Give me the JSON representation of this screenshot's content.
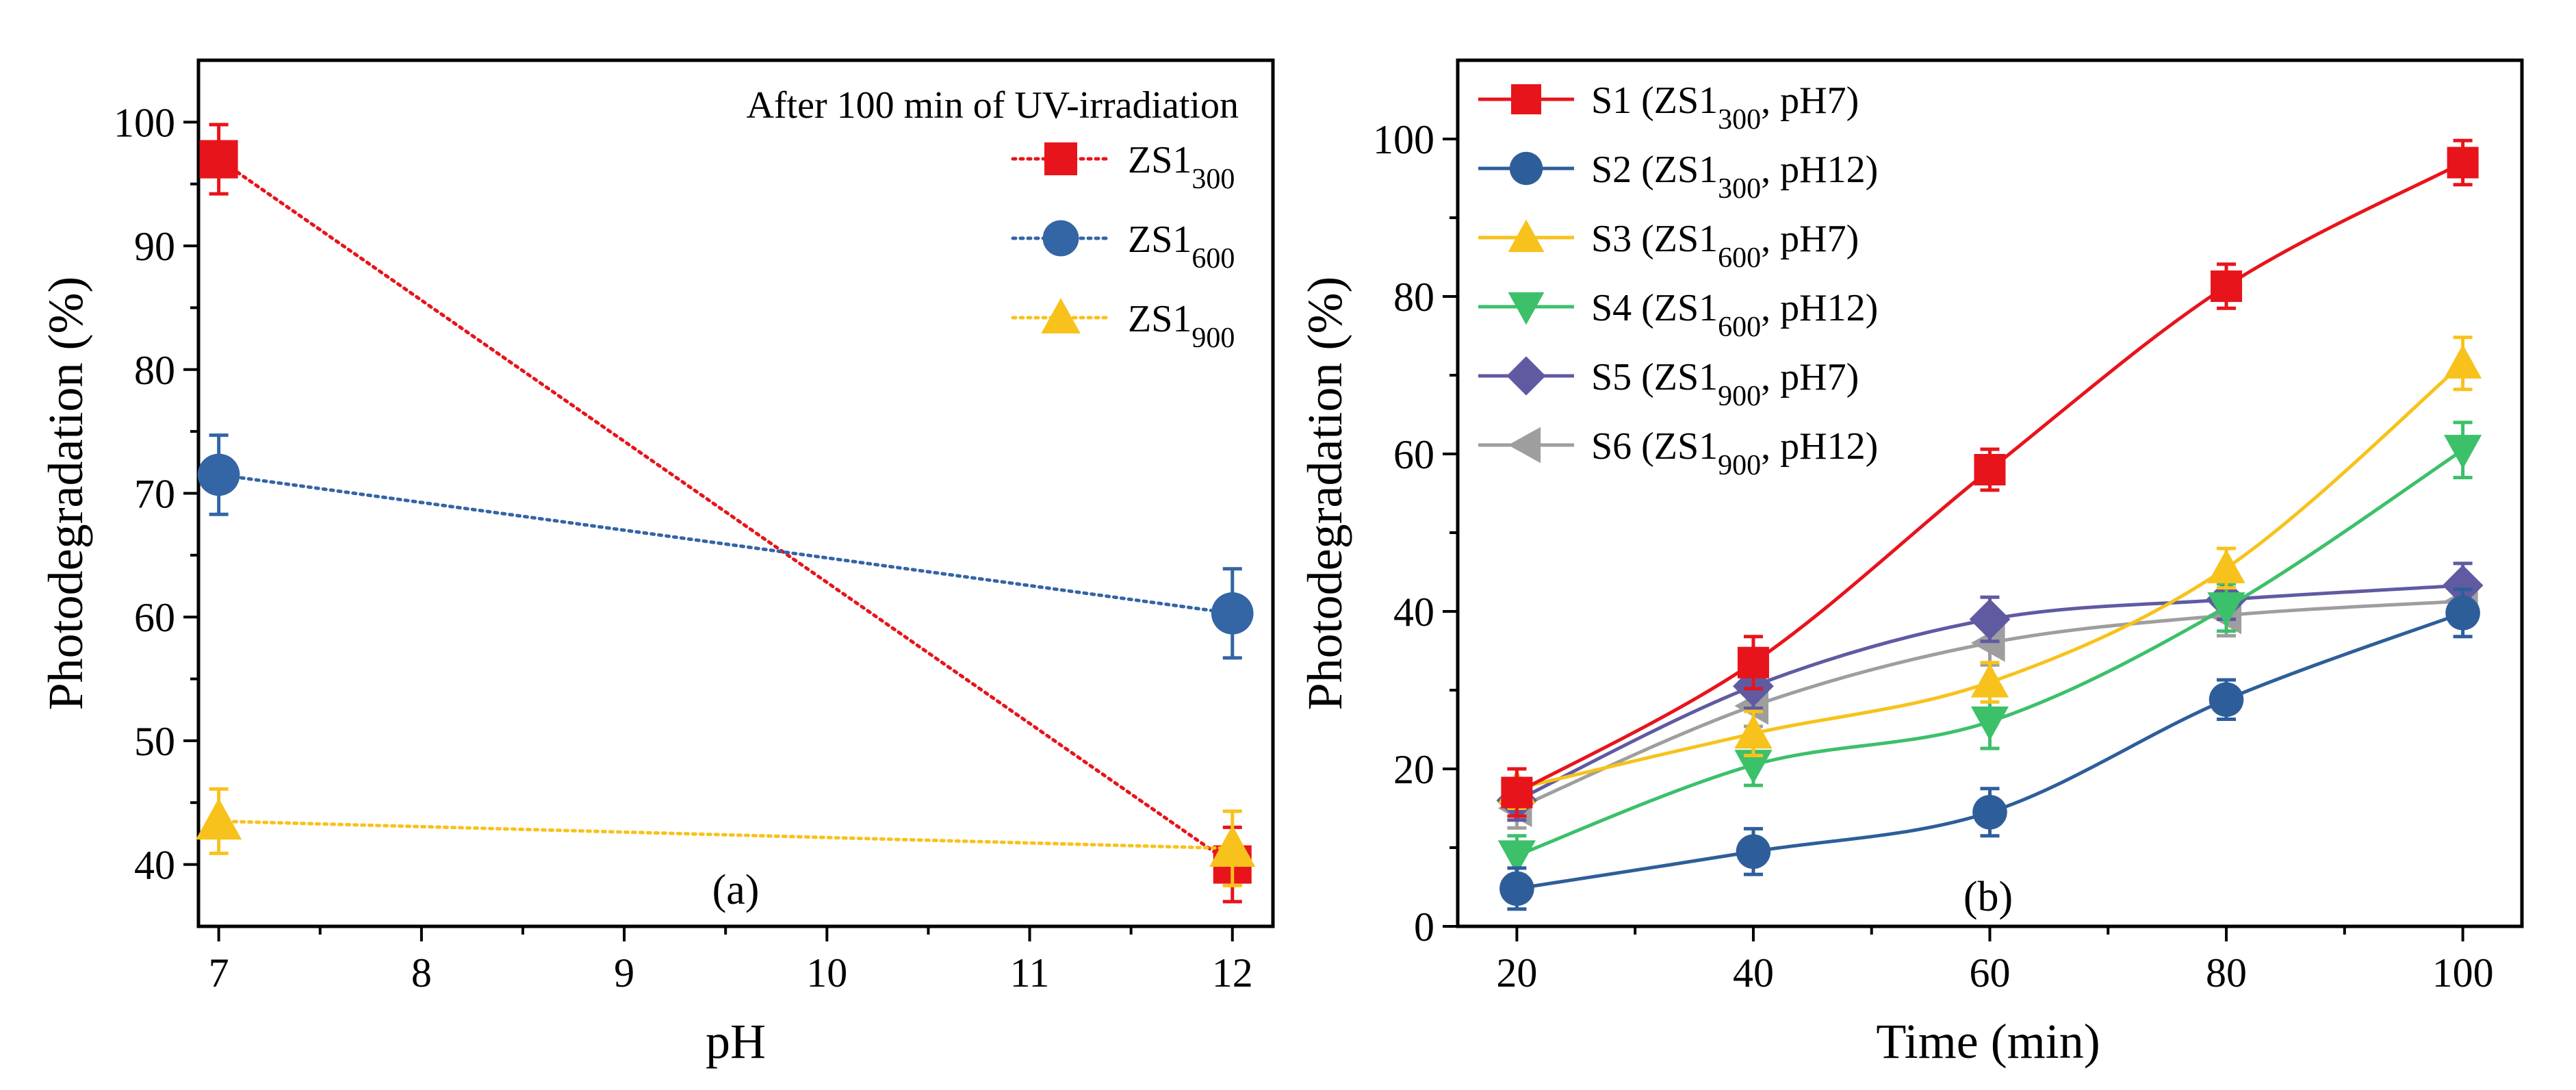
{
  "chart_data": [
    {
      "panel_label": "(a)",
      "type": "line",
      "annotation": "After 100 min of UV-irradiation",
      "xlabel": "pH",
      "ylabel": "Photodegradation (%)",
      "xlim": [
        6.9,
        12.2
      ],
      "ylim": [
        35,
        105
      ],
      "x_ticks": [
        7,
        8,
        9,
        10,
        11,
        12
      ],
      "y_ticks": [
        40,
        50,
        60,
        70,
        80,
        90,
        100
      ],
      "legend_position": "top-right",
      "series": [
        {
          "name": "ZS1",
          "sub": "300",
          "label": "ZS1300",
          "color": "#e8141b",
          "marker": "square",
          "line": "dotted",
          "x": [
            7,
            12
          ],
          "values": [
            97,
            40
          ],
          "errors": [
            2.8,
            3
          ]
        },
        {
          "name": "ZS1",
          "sub": "600",
          "label": "ZS1600",
          "color": "#3465a4",
          "marker": "circle",
          "line": "dotted",
          "x": [
            7,
            12
          ],
          "values": [
            71.5,
            60.3
          ],
          "errors": [
            3.2,
            3.6
          ]
        },
        {
          "name": "ZS1",
          "sub": "900",
          "label": "ZS1900",
          "color": "#f7c21b",
          "marker": "triangle-up",
          "line": "dotted",
          "x": [
            7,
            12
          ],
          "values": [
            43.5,
            41.3
          ],
          "errors": [
            2.6,
            3
          ]
        }
      ]
    },
    {
      "panel_label": "(b)",
      "type": "line",
      "xlabel": "Time (min)",
      "ylabel": "Photodegradation (%)",
      "xlim": [
        15,
        105
      ],
      "ylim": [
        0,
        110
      ],
      "x_ticks": [
        20,
        40,
        60,
        80,
        100
      ],
      "y_ticks": [
        0,
        20,
        40,
        60,
        80,
        100
      ],
      "legend_position": "top-left",
      "x": [
        20,
        40,
        60,
        80,
        100
      ],
      "series": [
        {
          "name": "S1 (ZS1",
          "sub": "300",
          "tail": ", pH7)",
          "label": "S1 (ZS1300, pH7)",
          "color": "#e8141b",
          "marker": "square",
          "values": [
            17,
            33.5,
            58,
            81.3,
            97
          ],
          "errors": [
            3,
            3.3,
            2.6,
            2.8,
            2.8
          ]
        },
        {
          "name": "S2 (ZS1",
          "sub": "300",
          "tail": ", pH12)",
          "label": "S2 (ZS1300, pH12)",
          "color": "#2e5e9a",
          "marker": "circle",
          "values": [
            4.8,
            9.5,
            14.5,
            28.8,
            39.8
          ],
          "errors": [
            2.6,
            2.9,
            3,
            2.5,
            3
          ]
        },
        {
          "name": "S3 (ZS1",
          "sub": "600",
          "tail": ", pH7)",
          "label": "S3 (ZS1600, pH7)",
          "color": "#f7c21b",
          "marker": "triangle-up",
          "values": [
            17.5,
            24.5,
            31,
            45.5,
            71.5
          ],
          "errors": [
            2.5,
            2.8,
            2.5,
            2.5,
            3.3
          ]
        },
        {
          "name": "S4 (ZS1",
          "sub": "600",
          "tail": ", pH12)",
          "label": "S4 (ZS1600, pH12)",
          "color": "#3cc06a",
          "marker": "triangle-down",
          "values": [
            9,
            20.5,
            26,
            40.5,
            60.5
          ],
          "errors": [
            2.5,
            2.6,
            3.4,
            3,
            3.5
          ]
        },
        {
          "name": "S5 (ZS1",
          "sub": "900",
          "tail": ", pH7)",
          "label": "S5 (ZS1900, pH7)",
          "color": "#5f5aa2",
          "marker": "diamond",
          "values": [
            16,
            30.5,
            39,
            41.5,
            43.3
          ],
          "errors": [
            2.5,
            2.8,
            2.8,
            2.5,
            2.8
          ]
        },
        {
          "name": "S6 (ZS1",
          "sub": "900",
          "tail": ", pH12)",
          "label": "S6 (ZS1900, pH12)",
          "color": "#9e9e9e",
          "marker": "triangle-left",
          "values": [
            15,
            28,
            36,
            39.5,
            41.3
          ],
          "errors": [
            2.5,
            2.6,
            2.8,
            2.6,
            2.7
          ]
        }
      ]
    }
  ]
}
